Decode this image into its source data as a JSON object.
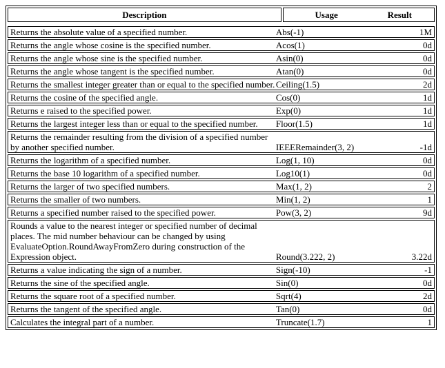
{
  "colors": {
    "background": "#ffffff",
    "border": "#000000",
    "text": "#000000"
  },
  "table": {
    "headers": {
      "description": "Description",
      "usage": "Usage",
      "result": "Result"
    },
    "rows": [
      {
        "description": "Returns the absolute value of a specified number.",
        "usage": "Abs(-1)",
        "result": "1M"
      },
      {
        "description": "Returns the angle whose cosine is the specified number.",
        "usage": "Acos(1)",
        "result": "0d"
      },
      {
        "description": "Returns the angle whose sine is the specified number.",
        "usage": "Asin(0)",
        "result": "0d"
      },
      {
        "description": "Returns the angle whose tangent is the specified number.",
        "usage": "Atan(0)",
        "result": "0d"
      },
      {
        "description": "Returns the smallest integer greater than or equal to the specified number.",
        "usage": "Ceiling(1.5)",
        "result": "2d"
      },
      {
        "description": "Returns the cosine of the specified angle.",
        "usage": "Cos(0)",
        "result": "1d"
      },
      {
        "description": "Returns e raised to the specified power.",
        "usage": "Exp(0)",
        "result": "1d"
      },
      {
        "description": "Returns the largest integer less than or equal to the specified number.",
        "usage": "Floor(1.5)",
        "result": "1d"
      },
      {
        "description": "Returns the remainder resulting from the division of a specified number by another specified number.",
        "usage": "IEEERemainder(3, 2)",
        "result": "-1d"
      },
      {
        "description": "Returns the logarithm of a specified number.",
        "usage": "Log(1, 10)",
        "result": "0d"
      },
      {
        "description": "Returns the base 10 logarithm of a specified number.",
        "usage": "Log10(1)",
        "result": "0d"
      },
      {
        "description": "Returns the larger of two specified numbers.",
        "usage": "Max(1, 2)",
        "result": "2"
      },
      {
        "description": "Returns the smaller of two numbers.",
        "usage": "Min(1, 2)",
        "result": "1"
      },
      {
        "description": "Returns a specified number raised to the specified power.",
        "usage": "Pow(3, 2)",
        "result": "9d"
      },
      {
        "description": "Rounds a value to the nearest integer or specified number of decimal places. The mid number behaviour can be changed by using EvaluateOption.RoundAwayFromZero during construction of the Expression object.",
        "usage": "Round(3.222, 2)",
        "result": "3.22d"
      },
      {
        "description": "Returns a value indicating the sign of a number.",
        "usage": "Sign(-10)",
        "result": "-1"
      },
      {
        "description": "Returns the sine of the specified angle.",
        "usage": "Sin(0)",
        "result": "0d"
      },
      {
        "description": "Returns the square root of a specified number.",
        "usage": "Sqrt(4)",
        "result": "2d"
      },
      {
        "description": "Returns the tangent of the specified angle.",
        "usage": "Tan(0)",
        "result": "0d"
      },
      {
        "description": "Calculates the integral part of a number.",
        "usage": "Truncate(1.7)",
        "result": "1"
      }
    ]
  }
}
